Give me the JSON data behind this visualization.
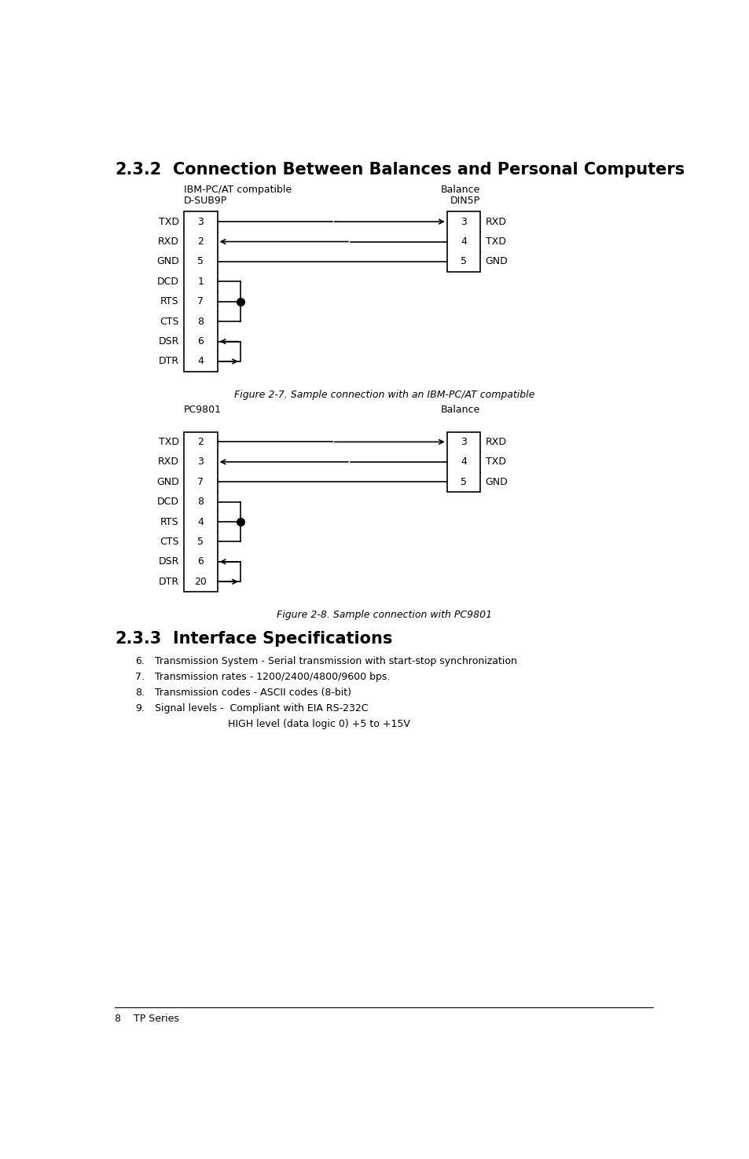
{
  "title_num": "2.3.2",
  "title_text": "Connection Between Balances and Personal Computers",
  "fig1_left_label1": "IBM-PC/AT compatible",
  "fig1_left_label2": "D-SUB9P",
  "fig1_right_label1": "Balance",
  "fig1_right_label2": "DIN5P",
  "fig1_left_pins": [
    "TXD|3",
    "RXD|2",
    "GND|5",
    "DCD|1",
    "RTS|7",
    "CTS|8",
    "DSR|6",
    "DTR|4"
  ],
  "fig1_right_pins": [
    "RXD|3",
    "TXD|4",
    "GND|5"
  ],
  "fig1_caption": "Figure 2-7. Sample connection with an IBM-PC/AT compatible",
  "fig2_left_label1": "PC9801",
  "fig2_right_label1": "Balance",
  "fig2_left_pins": [
    "TXD|2",
    "RXD|3",
    "GND|7",
    "DCD|8",
    "RTS|4",
    "CTS|5",
    "DSR|6",
    "DTR|20"
  ],
  "fig2_right_pins": [
    "RXD|3",
    "TXD|4",
    "GND|5"
  ],
  "fig2_caption": "Figure 2-8. Sample connection with PC9801",
  "sec233_title_num": "2.3.3",
  "sec233_title_text": "Interface Specifications",
  "sec233_items": [
    [
      "6.",
      "Transmission System - Serial transmission with start-stop synchronization"
    ],
    [
      "7.",
      "Transmission rates - 1200/2400/4800/9600 bps."
    ],
    [
      "8.",
      "Transmission codes - ASCII codes (8-bit)"
    ],
    [
      "9.",
      "Signal levels -  Compliant with EIA RS-232C"
    ]
  ],
  "sec233_subitem": "HIGH level (data logic 0) +5 to +15V",
  "footer": "8    TP Series"
}
